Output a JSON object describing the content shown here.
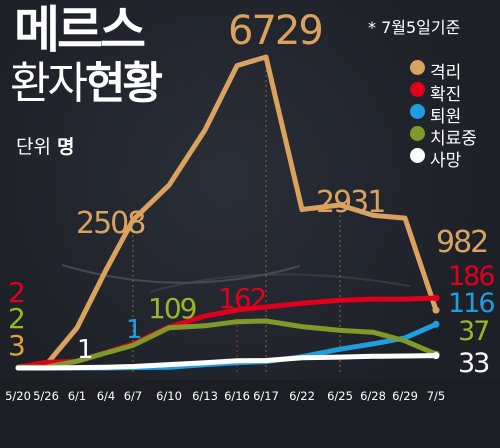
{
  "header": {
    "title_line1": "메르스",
    "title_line2_a": "환자",
    "title_line2_b": "현황",
    "unit_label": "단위",
    "unit_value": "명",
    "note": "* 7월5일기준"
  },
  "colors": {
    "격리": "#d9a25e",
    "확진": "#e0001b",
    "퇴원": "#1e9de0",
    "치료중": "#7f9a2a",
    "사망": "#ffffff"
  },
  "chart_data": {
    "type": "line",
    "title": "메르스 환자현황",
    "subtitle": "* 7월5일기준",
    "ylabel": "단위 명",
    "x": [
      "5/20",
      "5/26",
      "6/1",
      "6/4",
      "6/7",
      "6/10",
      "6/13",
      "6/16",
      "6/17",
      "6/22",
      "6/25",
      "6/28",
      "6/29",
      "7/5"
    ],
    "ylim": [
      0,
      6729
    ],
    "legend_position": "top-right",
    "series": [
      {
        "name": "격리",
        "color": "#d9a25e",
        "values": [
          0,
          50,
          680,
          1660,
          2508,
          3439,
          4856,
          6508,
          6729,
          2805,
          2931,
          2640,
          2562,
          982
        ]
      },
      {
        "name": "확진",
        "color": "#e0001b",
        "values": [
          2,
          15,
          18,
          41,
          64,
          109,
          138,
          154,
          162,
          172,
          180,
          183,
          183,
          186
        ]
      },
      {
        "name": "퇴원",
        "color": "#1e9de0",
        "values": [
          0,
          0,
          0,
          0,
          1,
          2,
          9,
          14,
          17,
          30,
          50,
          64,
          80,
          116
        ]
      },
      {
        "name": "치료중",
        "color": "#7f9a2a",
        "values": [
          2,
          2,
          18,
          40,
          60,
          107,
          112,
          123,
          125,
          110,
          100,
          95,
          72,
          37
        ]
      },
      {
        "name": "사망",
        "color": "#ffffff",
        "values": [
          0,
          0,
          1,
          2,
          4,
          9,
          14,
          19,
          20,
          27,
          29,
          31,
          32,
          33
        ]
      }
    ],
    "annotations": [
      "2508",
      "6729",
      "2931",
      "982",
      "109",
      "162",
      "186",
      "116",
      "37",
      "33",
      "1",
      "1",
      "2",
      "2",
      "3"
    ]
  }
}
